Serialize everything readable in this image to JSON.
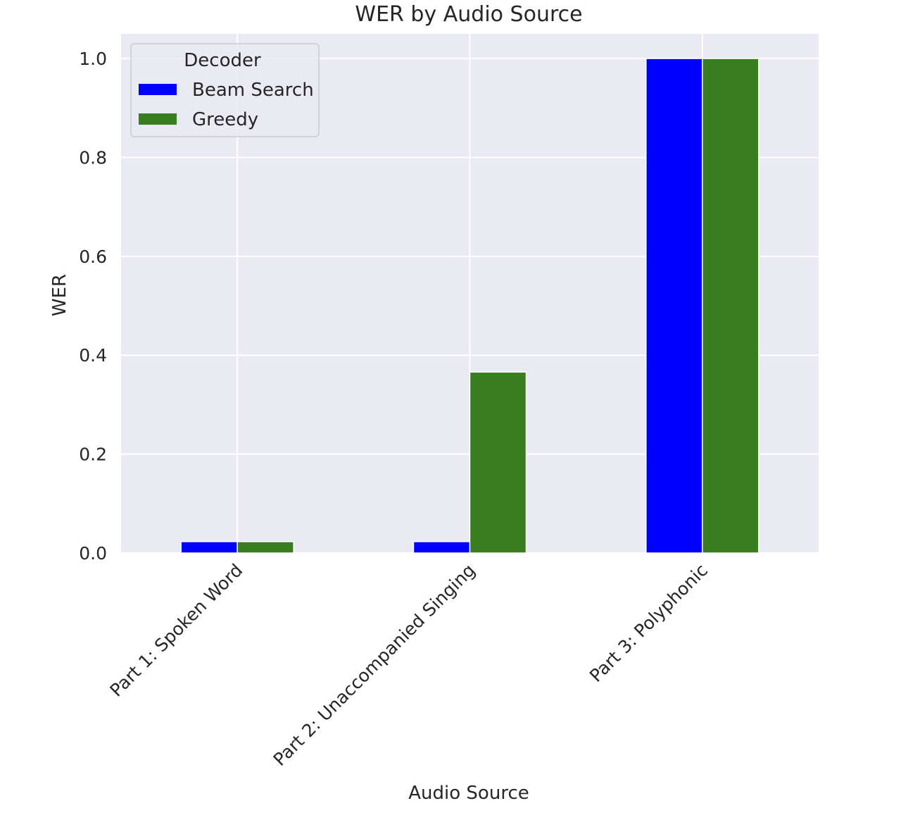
{
  "chart_data": {
    "type": "bar",
    "title": "WER by Audio Source",
    "xlabel": "Audio Source",
    "ylabel": "WER",
    "categories": [
      "Part 1: Spoken Word",
      "Part 2: Unaccompanied Singing",
      "Part 3: Polyphonic"
    ],
    "series": [
      {
        "name": "Beam Search",
        "values": [
          0.023,
          0.023,
          1.0
        ],
        "color": "#0000ff"
      },
      {
        "name": "Greedy",
        "values": [
          0.023,
          0.366,
          1.0
        ],
        "color": "#397d21"
      }
    ],
    "ylim": [
      0,
      1.05
    ],
    "yticks": [
      0.0,
      0.2,
      0.4,
      0.6,
      0.8,
      1.0
    ],
    "ytick_labels": [
      "0.0",
      "0.2",
      "0.4",
      "0.6",
      "0.8",
      "1.0"
    ],
    "grid": true,
    "background": "#eaeaf2",
    "legend": {
      "title": "Decoder",
      "placement": "top-left"
    }
  }
}
